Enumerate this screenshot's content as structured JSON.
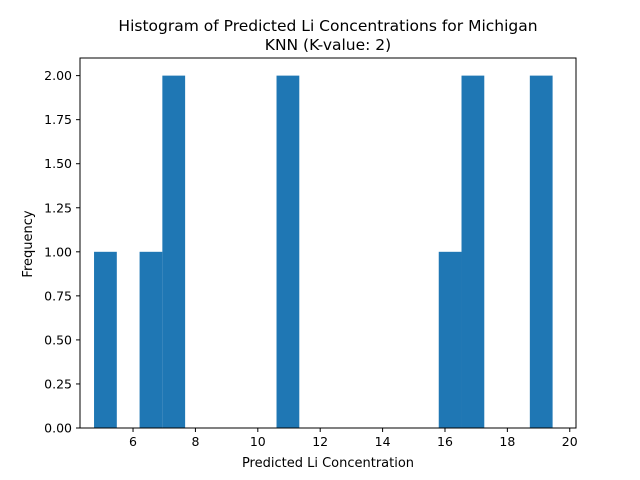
{
  "chart_data": {
    "type": "bar",
    "title_line1": "Histogram of Predicted Li Concentrations for Michigan",
    "title_line2": "KNN (K-value: 2)",
    "xlabel": "Predicted Li Concentration",
    "ylabel": "Frequency",
    "xlim": [
      4.3,
      20.2
    ],
    "ylim": [
      0,
      2.1
    ],
    "x_ticks": [
      6,
      8,
      10,
      12,
      14,
      16,
      18,
      20
    ],
    "x_tick_labels": [
      "6",
      "8",
      "10",
      "12",
      "14",
      "16",
      "18",
      "20"
    ],
    "y_ticks": [
      0,
      0.25,
      0.5,
      0.75,
      1.0,
      1.25,
      1.5,
      1.75,
      2.0
    ],
    "y_tick_labels": [
      "0.00",
      "0.25",
      "0.50",
      "0.75",
      "1.00",
      "1.25",
      "1.50",
      "1.75",
      "2.00"
    ],
    "bar_color": "#1f77b4",
    "bins": [
      {
        "x0": 4.75,
        "x1": 5.48,
        "count": 1
      },
      {
        "x0": 6.21,
        "x1": 6.94,
        "count": 1
      },
      {
        "x0": 6.94,
        "x1": 7.67,
        "count": 2
      },
      {
        "x0": 10.6,
        "x1": 11.33,
        "count": 2
      },
      {
        "x0": 15.8,
        "x1": 16.53,
        "count": 1
      },
      {
        "x0": 16.53,
        "x1": 17.26,
        "count": 2
      },
      {
        "x0": 18.72,
        "x1": 19.45,
        "count": 2
      }
    ],
    "grid": false,
    "legend": false
  }
}
